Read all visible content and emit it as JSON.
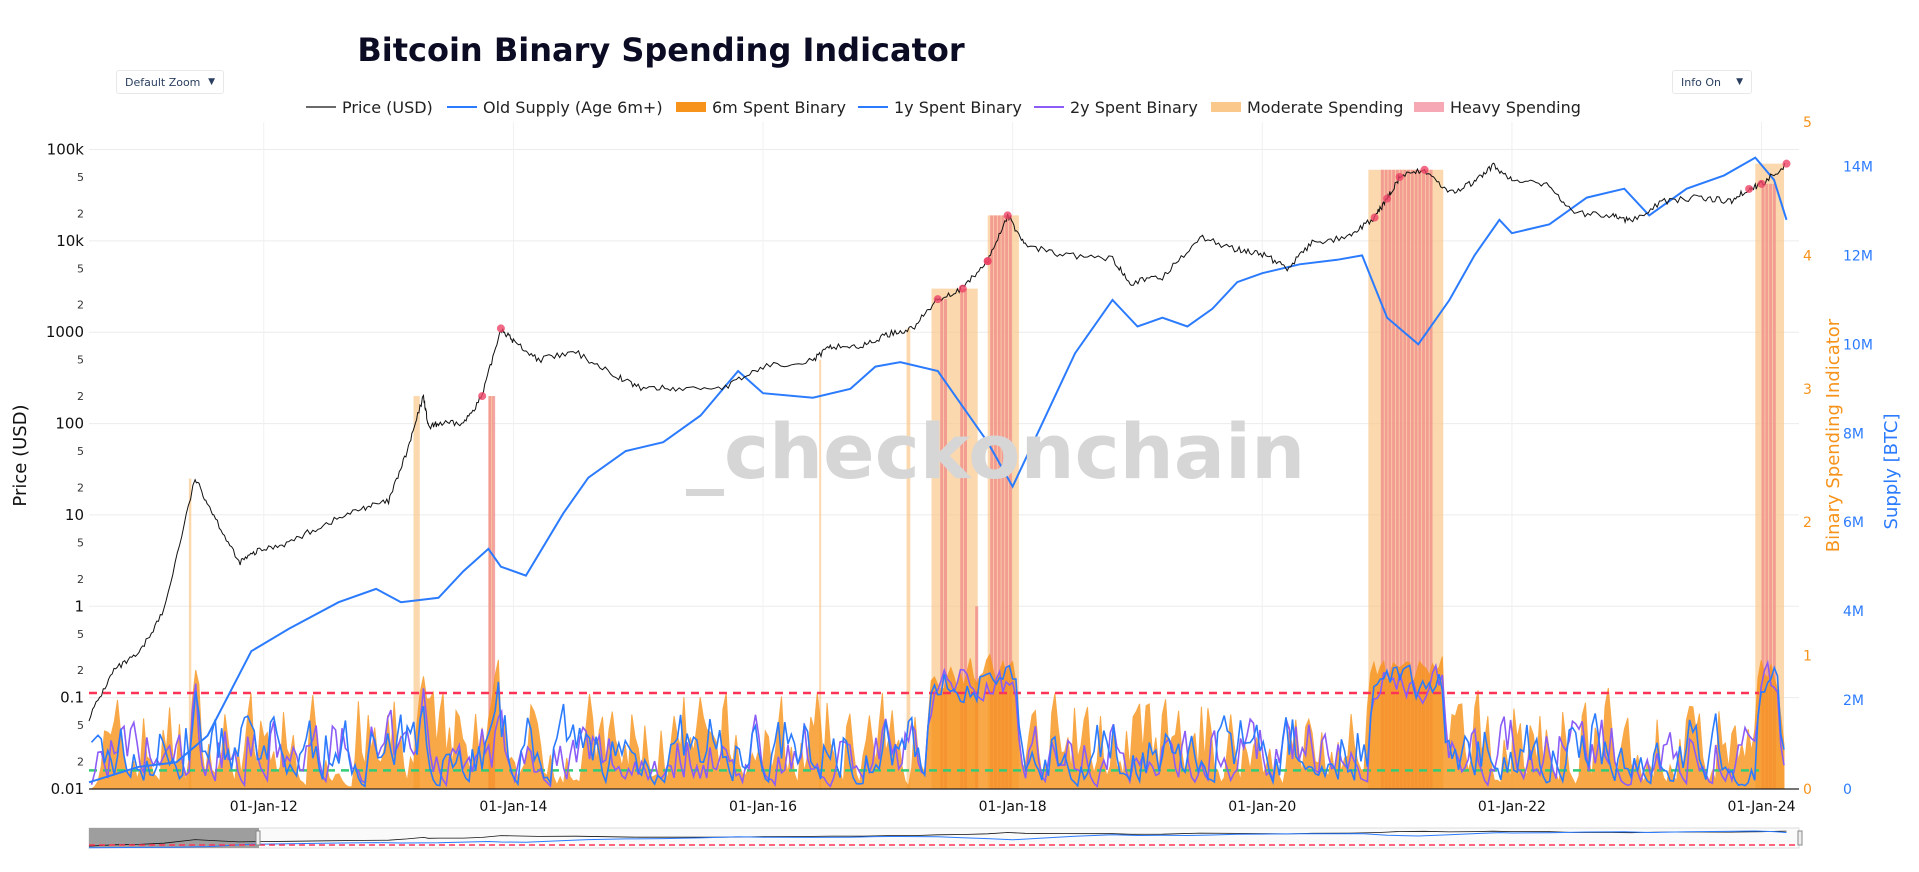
{
  "controls": {
    "zoom_label": "Default Zoom",
    "info_label": "Info On",
    "caret": "▼"
  },
  "watermark": "_checkonchain",
  "colors": {
    "price": "#111111",
    "old_supply": "#2b7bff",
    "spent6m": "#f7931a",
    "spent1y": "#2b7bff",
    "spent2y": "#8b5cf6",
    "moderate": "#f9c88a",
    "heavy": "#f08a8a",
    "heavy_marker": "#ee4466",
    "threshold_high": "#ff3355",
    "threshold_low": "#33cc77"
  },
  "chart_data": {
    "type": "line",
    "title": "Bitcoin Binary Spending Indicator",
    "x_ticks": [
      "01-Jan-12",
      "01-Jan-14",
      "01-Jan-16",
      "01-Jan-18",
      "01-Jan-20",
      "01-Jan-22",
      "01-Jan-24"
    ],
    "x_range": [
      2010.6,
      2024.3
    ],
    "y_left": {
      "label": "Price (USD)",
      "scale": "log",
      "range": [
        0.01,
        200000
      ],
      "ticks": [
        "0.01",
        "0.1",
        "1",
        "10",
        "100",
        "1000",
        "10k",
        "100k"
      ],
      "minor_ticks": [
        "2",
        "5"
      ]
    },
    "y_right1": {
      "label": "Binary Spending Indicator",
      "range": [
        0,
        5
      ],
      "ticks": [
        "0",
        "1",
        "2",
        "3",
        "4",
        "5"
      ]
    },
    "y_right2": {
      "label": "Supply [BTC]",
      "range": [
        0,
        15000000
      ],
      "ticks": [
        "0",
        "2M",
        "4M",
        "6M",
        "8M",
        "10M",
        "12M",
        "14M"
      ]
    },
    "legend": [
      "Price (USD)",
      "Old Supply (Age 6m+)",
      "6m Spent Binary",
      "1y Spent Binary",
      "2y Spent Binary",
      "Moderate Spending",
      "Heavy Spending"
    ],
    "thresholds": {
      "high": 0.72,
      "low": 0.14
    },
    "series": [
      {
        "name": "Price (USD)",
        "axis": "y_left",
        "points": [
          [
            2010.6,
            0.06
          ],
          [
            2010.8,
            0.2
          ],
          [
            2011.0,
            0.3
          ],
          [
            2011.2,
            0.9
          ],
          [
            2011.45,
            25
          ],
          [
            2011.6,
            10
          ],
          [
            2011.8,
            3
          ],
          [
            2011.95,
            4
          ],
          [
            2012.2,
            5
          ],
          [
            2012.5,
            8
          ],
          [
            2012.8,
            12
          ],
          [
            2013.0,
            14
          ],
          [
            2013.15,
            50
          ],
          [
            2013.28,
            200
          ],
          [
            2013.32,
            90
          ],
          [
            2013.4,
            100
          ],
          [
            2013.6,
            100
          ],
          [
            2013.75,
            200
          ],
          [
            2013.9,
            1100
          ],
          [
            2014.0,
            800
          ],
          [
            2014.2,
            500
          ],
          [
            2014.5,
            600
          ],
          [
            2014.8,
            350
          ],
          [
            2015.0,
            250
          ],
          [
            2015.3,
            240
          ],
          [
            2015.7,
            250
          ],
          [
            2016.0,
            420
          ],
          [
            2016.4,
            500
          ],
          [
            2016.55,
            700
          ],
          [
            2016.8,
            700
          ],
          [
            2017.0,
            950
          ],
          [
            2017.2,
            1100
          ],
          [
            2017.4,
            2300
          ],
          [
            2017.6,
            3000
          ],
          [
            2017.8,
            6000
          ],
          [
            2017.96,
            19000
          ],
          [
            2018.1,
            9000
          ],
          [
            2018.4,
            7000
          ],
          [
            2018.8,
            6300
          ],
          [
            2018.95,
            3500
          ],
          [
            2019.2,
            4000
          ],
          [
            2019.5,
            11000
          ],
          [
            2019.8,
            8000
          ],
          [
            2020.0,
            7200
          ],
          [
            2020.2,
            5000
          ],
          [
            2020.4,
            9500
          ],
          [
            2020.7,
            11000
          ],
          [
            2020.9,
            18000
          ],
          [
            2021.0,
            29000
          ],
          [
            2021.1,
            50000
          ],
          [
            2021.3,
            60000
          ],
          [
            2021.5,
            33000
          ],
          [
            2021.7,
            44000
          ],
          [
            2021.85,
            67000
          ],
          [
            2022.0,
            46000
          ],
          [
            2022.3,
            40000
          ],
          [
            2022.5,
            20000
          ],
          [
            2022.8,
            19000
          ],
          [
            2022.95,
            16500
          ],
          [
            2023.2,
            27000
          ],
          [
            2023.5,
            30000
          ],
          [
            2023.75,
            27000
          ],
          [
            2023.9,
            37000
          ],
          [
            2024.0,
            42000
          ],
          [
            2024.2,
            70000
          ]
        ]
      },
      {
        "name": "Old Supply (Age 6m+)",
        "axis": "y_right2",
        "points": [
          [
            2010.6,
            150000
          ],
          [
            2011.0,
            500000
          ],
          [
            2011.3,
            600000
          ],
          [
            2011.55,
            1200000
          ],
          [
            2011.9,
            3100000
          ],
          [
            2012.2,
            3600000
          ],
          [
            2012.6,
            4200000
          ],
          [
            2012.9,
            4500000
          ],
          [
            2013.1,
            4200000
          ],
          [
            2013.4,
            4300000
          ],
          [
            2013.6,
            4900000
          ],
          [
            2013.8,
            5400000
          ],
          [
            2013.9,
            5000000
          ],
          [
            2014.1,
            4800000
          ],
          [
            2014.4,
            6200000
          ],
          [
            2014.6,
            7000000
          ],
          [
            2014.9,
            7600000
          ],
          [
            2015.2,
            7800000
          ],
          [
            2015.5,
            8400000
          ],
          [
            2015.8,
            9400000
          ],
          [
            2016.0,
            8900000
          ],
          [
            2016.4,
            8800000
          ],
          [
            2016.7,
            9000000
          ],
          [
            2016.9,
            9500000
          ],
          [
            2017.1,
            9600000
          ],
          [
            2017.4,
            9400000
          ],
          [
            2017.6,
            8600000
          ],
          [
            2017.8,
            7800000
          ],
          [
            2018.0,
            6800000
          ],
          [
            2018.2,
            8000000
          ],
          [
            2018.5,
            9800000
          ],
          [
            2018.8,
            11000000
          ],
          [
            2019.0,
            10400000
          ],
          [
            2019.2,
            10600000
          ],
          [
            2019.4,
            10400000
          ],
          [
            2019.6,
            10800000
          ],
          [
            2019.8,
            11400000
          ],
          [
            2020.0,
            11600000
          ],
          [
            2020.3,
            11800000
          ],
          [
            2020.6,
            11900000
          ],
          [
            2020.8,
            12000000
          ],
          [
            2021.0,
            10600000
          ],
          [
            2021.25,
            10000000
          ],
          [
            2021.5,
            11000000
          ],
          [
            2021.7,
            12000000
          ],
          [
            2021.9,
            12800000
          ],
          [
            2022.0,
            12500000
          ],
          [
            2022.3,
            12700000
          ],
          [
            2022.6,
            13300000
          ],
          [
            2022.9,
            13500000
          ],
          [
            2023.1,
            12900000
          ],
          [
            2023.4,
            13500000
          ],
          [
            2023.7,
            13800000
          ],
          [
            2023.95,
            14200000
          ],
          [
            2024.1,
            13700000
          ],
          [
            2024.2,
            12800000
          ]
        ]
      },
      {
        "name": "6m Spent Binary",
        "axis": "y_right1",
        "style": "area"
      },
      {
        "name": "1y Spent Binary",
        "axis": "y_right1",
        "style": "line"
      },
      {
        "name": "2y Spent Binary",
        "axis": "y_right1",
        "style": "line"
      }
    ],
    "moderate_spending": [
      [
        2011.4,
        2011.42
      ],
      [
        2013.2,
        2013.25
      ],
      [
        2013.8,
        2013.84
      ],
      [
        2016.45,
        2016.46
      ],
      [
        2017.15,
        2017.18
      ],
      [
        2017.35,
        2017.72
      ],
      [
        2017.8,
        2018.05
      ],
      [
        2020.85,
        2021.45
      ],
      [
        2023.95,
        2024.18
      ]
    ],
    "heavy_spending": [
      [
        2013.8,
        2013.84
      ],
      [
        2017.42,
        2017.48
      ],
      [
        2017.58,
        2017.62
      ],
      [
        2017.7,
        2017.72
      ],
      [
        2017.82,
        2017.98
      ],
      [
        2020.95,
        2021.35
      ],
      [
        2024.0,
        2024.12
      ]
    ]
  }
}
